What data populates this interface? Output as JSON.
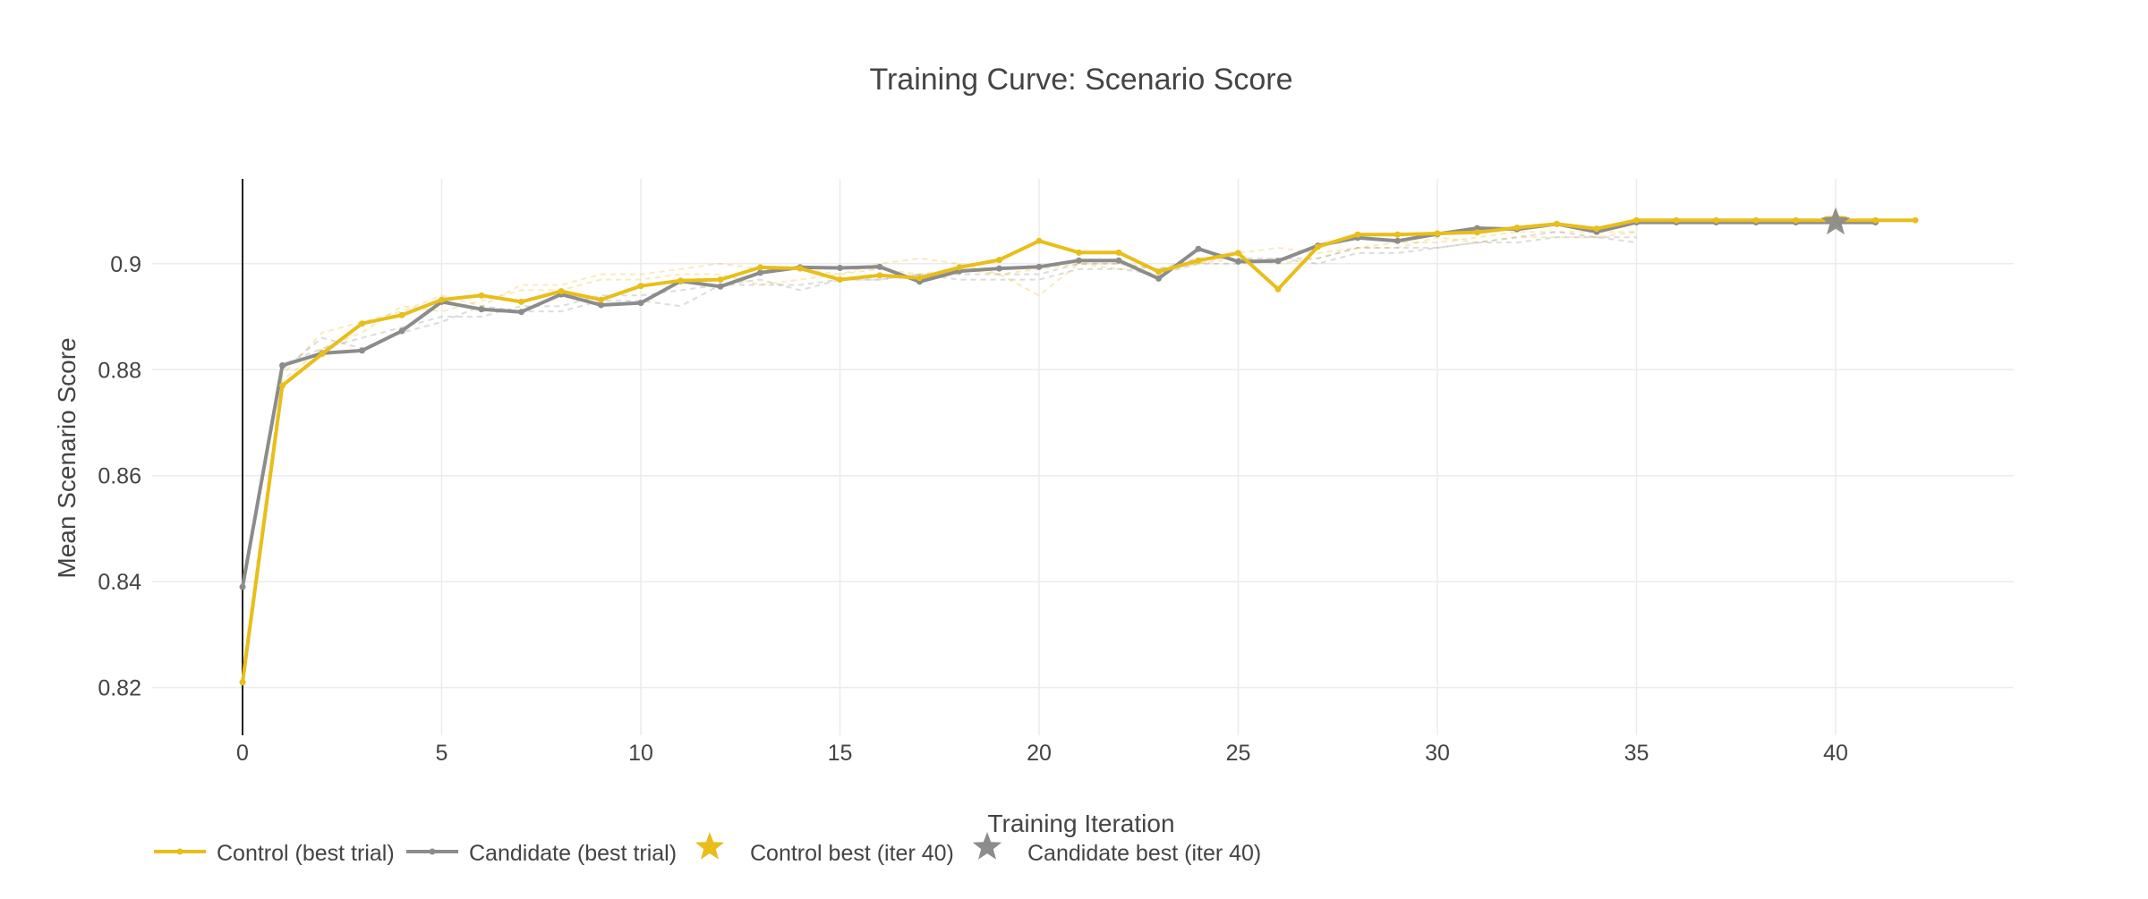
{
  "chart_data": {
    "type": "line",
    "title": "Training Curve: Scenario Score",
    "xlabel": "Training Iteration",
    "ylabel": "Mean Scenario Score",
    "xlim": [
      -4,
      45
    ],
    "ylim": [
      0.811,
      0.916
    ],
    "xticks": [
      0,
      5,
      10,
      15,
      20,
      25,
      30,
      35,
      40
    ],
    "xtick_labels": [
      "0",
      "5",
      "10",
      "15",
      "20",
      "25",
      "30",
      "35",
      "40"
    ],
    "yticks": [
      0.82,
      0.84,
      0.86,
      0.88,
      0.9
    ],
    "ytick_labels": [
      "0.82",
      "0.84",
      "0.86",
      "0.88",
      "0.9"
    ],
    "grid": true,
    "legend_position": "bottom-left",
    "colors": {
      "control": "#E8BE1A",
      "candidate": "#8C8C8C",
      "grid": "#EBEBEB",
      "axis": "#222222"
    },
    "series": [
      {
        "name": "Control (best trial)",
        "x": [
          0,
          1,
          2,
          3,
          4,
          5,
          6,
          7,
          8,
          9,
          10,
          11,
          12,
          13,
          14,
          15,
          16,
          17,
          18,
          19,
          20,
          21,
          22,
          23,
          24,
          25,
          26,
          27,
          28,
          29,
          30,
          31,
          32,
          33,
          34,
          35,
          36,
          37,
          38,
          39,
          40,
          41,
          42
        ],
        "values": [
          0.821,
          0.877,
          0.883,
          0.8887,
          0.8903,
          0.8932,
          0.894,
          0.8928,
          0.8948,
          0.8932,
          0.8958,
          0.8968,
          0.897,
          0.8993,
          0.8991,
          0.897,
          0.8978,
          0.8973,
          0.8993,
          0.9007,
          0.9043,
          0.9021,
          0.9021,
          0.8985,
          0.9006,
          0.902,
          0.8952,
          0.9032,
          0.9055,
          0.9055,
          0.9057,
          0.9059,
          0.9068,
          0.9075,
          0.9066,
          0.9082,
          0.9082,
          0.9082,
          0.9082,
          0.9082,
          0.9082,
          0.9082,
          0.9082
        ]
      },
      {
        "name": "Candidate (best trial)",
        "x": [
          0,
          1,
          2,
          3,
          4,
          5,
          6,
          7,
          8,
          9,
          10,
          11,
          12,
          13,
          14,
          15,
          16,
          17,
          18,
          19,
          20,
          21,
          22,
          23,
          24,
          25,
          26,
          27,
          28,
          29,
          30,
          31,
          32,
          33,
          34,
          35,
          36,
          37,
          38,
          39,
          40,
          41
        ],
        "values": [
          0.839,
          0.8808,
          0.8831,
          0.8836,
          0.8873,
          0.8928,
          0.8914,
          0.8909,
          0.8942,
          0.8922,
          0.8926,
          0.8967,
          0.8957,
          0.8983,
          0.8993,
          0.8992,
          0.8994,
          0.8966,
          0.8986,
          0.8991,
          0.8994,
          0.9006,
          0.9006,
          0.8972,
          0.9028,
          0.9004,
          0.9005,
          0.9034,
          0.9049,
          0.9043,
          0.9056,
          0.9067,
          0.9065,
          0.9075,
          0.906,
          0.9078,
          0.9078,
          0.9078,
          0.9078,
          0.9078,
          0.9078,
          0.9078
        ]
      },
      {
        "name": "Control best (iter 40)",
        "x": [
          40
        ],
        "values": [
          0.9082
        ]
      },
      {
        "name": "Candidate best (iter 40)",
        "x": [
          40
        ],
        "values": [
          0.9078
        ]
      }
    ],
    "background_trials": {
      "control": [
        {
          "x": [
            0,
            1,
            2,
            3,
            4,
            5,
            6,
            7,
            8,
            9,
            10,
            11,
            12,
            13,
            14,
            15,
            16,
            17,
            18,
            19,
            20,
            21,
            22,
            23,
            24,
            25,
            26,
            27,
            28,
            29,
            30,
            31,
            32,
            33,
            34,
            35
          ],
          "values": [
            0.823,
            0.879,
            0.887,
            0.889,
            0.891,
            0.894,
            0.892,
            0.896,
            0.896,
            0.898,
            0.898,
            0.899,
            0.9,
            0.899,
            0.899,
            0.898,
            0.9,
            0.901,
            0.9,
            0.898,
            0.894,
            0.9,
            0.899,
            0.899,
            0.9,
            0.901,
            0.9,
            0.901,
            0.903,
            0.904,
            0.904,
            0.905,
            0.906,
            0.906,
            0.906,
            0.906
          ]
        },
        {
          "x": [
            0,
            1,
            2,
            3,
            4,
            5,
            6,
            7,
            8,
            9,
            10,
            11,
            12,
            13,
            14,
            15,
            16,
            17,
            18,
            19,
            20,
            21,
            22,
            23,
            24,
            25,
            26,
            27,
            28,
            29,
            30,
            31,
            32,
            33,
            34,
            35
          ],
          "values": [
            0.822,
            0.878,
            0.884,
            0.887,
            0.892,
            0.891,
            0.893,
            0.895,
            0.895,
            0.897,
            0.897,
            0.898,
            0.898,
            0.896,
            0.897,
            0.898,
            0.899,
            0.898,
            0.899,
            0.898,
            0.899,
            0.9,
            0.9,
            0.899,
            0.9,
            0.902,
            0.903,
            0.902,
            0.903,
            0.903,
            0.905,
            0.904,
            0.905,
            0.905,
            0.905,
            0.906
          ]
        }
      ],
      "candidate": [
        {
          "x": [
            0,
            1,
            2,
            3,
            4,
            5,
            6,
            7,
            8,
            9,
            10,
            11,
            12,
            13,
            14,
            15,
            16,
            17,
            18,
            19,
            20,
            21,
            22,
            23,
            24,
            25,
            26,
            27,
            28,
            29,
            30,
            31,
            32,
            33,
            34,
            35
          ],
          "values": [
            0.84,
            0.88,
            0.886,
            0.884,
            0.887,
            0.889,
            0.892,
            0.891,
            0.891,
            0.893,
            0.893,
            0.892,
            0.896,
            0.897,
            0.895,
            0.897,
            0.897,
            0.898,
            0.897,
            0.897,
            0.897,
            0.899,
            0.899,
            0.898,
            0.9,
            0.9,
            0.901,
            0.9,
            0.902,
            0.902,
            0.903,
            0.904,
            0.904,
            0.905,
            0.905,
            0.905
          ]
        },
        {
          "x": [
            0,
            1,
            2,
            3,
            4,
            5,
            6,
            7,
            8,
            9,
            10,
            11,
            12,
            13,
            14,
            15,
            16,
            17,
            18,
            19,
            20,
            21,
            22,
            23,
            24,
            25,
            26,
            27,
            28,
            29,
            30,
            31,
            32,
            33,
            34,
            35
          ],
          "values": [
            0.838,
            0.881,
            0.884,
            0.886,
            0.888,
            0.89,
            0.89,
            0.892,
            0.892,
            0.894,
            0.894,
            0.895,
            0.896,
            0.896,
            0.896,
            0.897,
            0.897,
            0.898,
            0.898,
            0.898,
            0.898,
            0.9,
            0.9,
            0.899,
            0.901,
            0.901,
            0.901,
            0.901,
            0.903,
            0.903,
            0.903,
            0.904,
            0.905,
            0.906,
            0.905,
            0.904
          ]
        }
      ]
    }
  }
}
